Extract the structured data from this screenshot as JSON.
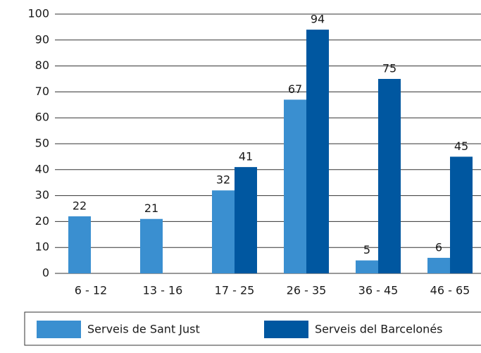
{
  "chart_data": {
    "type": "bar",
    "categories": [
      "6 - 12",
      "13 - 16",
      "17 - 25",
      "26 - 35",
      "36 - 45",
      "46 - 65"
    ],
    "series": [
      {
        "name": "Serveis de Sant Just",
        "color": "#3a8fd0",
        "values": [
          22,
          21,
          32,
          67,
          5,
          6
        ]
      },
      {
        "name": "Serveis del Barcelonés",
        "color": "#0057a0",
        "values": [
          null,
          null,
          41,
          94,
          75,
          45
        ]
      }
    ],
    "ylim": [
      0,
      100
    ],
    "yticks": [
      0,
      10,
      20,
      30,
      40,
      50,
      60,
      70,
      80,
      90,
      100
    ],
    "grid": true,
    "legend": "bottom"
  }
}
